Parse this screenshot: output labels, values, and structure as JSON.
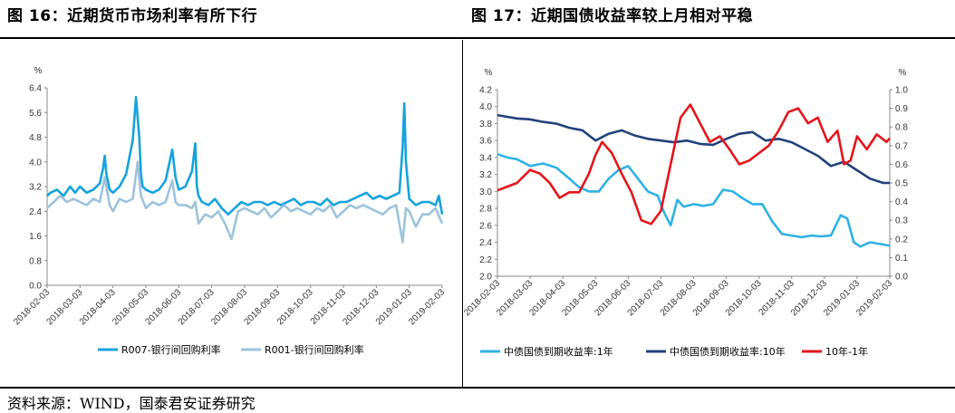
{
  "page": {
    "title_left": "图 16：近期货币市场利率有所下行",
    "title_right": "图 17：近期国债收益率较上月相对平稳",
    "source": "资料来源：WIND，国泰君安证券研究",
    "colors": {
      "r007": "#15a3dc",
      "r001": "#9ec3dd",
      "cgb1y": "#2fb2e3",
      "cgb10y": "#22417a",
      "spread": "#e3151b"
    }
  },
  "chart_data": [
    {
      "type": "line",
      "unit_label": "%",
      "ylim": [
        0.0,
        6.4
      ],
      "yticks": [
        "0.0",
        "0.8",
        "1.6",
        "2.4",
        "3.2",
        "4.0",
        "4.8",
        "5.6",
        "6.4"
      ],
      "xticks": [
        "2018-02-03",
        "2018-03-03",
        "2018-04-03",
        "2018-05-03",
        "2018-06-03",
        "2018-07-03",
        "2018-08-03",
        "2018-09-03",
        "2018-10-03",
        "2018-11-03",
        "2018-12-03",
        "2019-01-03",
        "2019-02-03"
      ],
      "grid": false,
      "legend": "bottom",
      "series": [
        {
          "name": "R007-银行间回购利率",
          "color": "#15a3dc",
          "x": [
            0,
            0.1,
            0.3,
            0.5,
            0.7,
            0.85,
            1.0,
            1.2,
            1.4,
            1.6,
            1.7,
            1.75,
            1.8,
            1.9,
            2.0,
            2.2,
            2.4,
            2.6,
            2.7,
            2.8,
            2.85,
            2.9,
            3.0,
            3.2,
            3.4,
            3.6,
            3.8,
            3.9,
            4.0,
            4.2,
            4.4,
            4.5,
            4.55,
            4.6,
            4.7,
            4.9,
            5.1,
            5.3,
            5.5,
            5.7,
            5.9,
            6.1,
            6.3,
            6.5,
            6.7,
            6.9,
            7.1,
            7.3,
            7.5,
            7.7,
            7.9,
            8.1,
            8.3,
            8.5,
            8.7,
            8.9,
            9.1,
            9.3,
            9.5,
            9.7,
            9.9,
            10.1,
            10.3,
            10.5,
            10.7,
            10.8,
            10.85,
            10.9,
            11.0,
            11.2,
            11.4,
            11.6,
            11.8,
            11.9,
            12.0
          ],
          "y": [
            2.9,
            3.0,
            3.1,
            2.9,
            3.2,
            3.0,
            3.2,
            3.0,
            3.1,
            3.3,
            3.8,
            4.2,
            3.6,
            3.1,
            3.0,
            3.2,
            3.6,
            4.7,
            6.1,
            4.8,
            3.6,
            3.2,
            3.1,
            3.0,
            3.1,
            3.4,
            4.4,
            3.5,
            3.1,
            3.2,
            3.7,
            4.6,
            3.2,
            2.9,
            2.7,
            2.6,
            2.8,
            2.5,
            2.3,
            2.5,
            2.7,
            2.6,
            2.7,
            2.7,
            2.6,
            2.7,
            2.6,
            2.7,
            2.8,
            2.6,
            2.7,
            2.7,
            2.6,
            2.8,
            2.6,
            2.7,
            2.7,
            2.8,
            2.9,
            3.0,
            2.8,
            2.9,
            2.8,
            2.9,
            3.0,
            4.5,
            5.9,
            4.0,
            2.8,
            2.6,
            2.7,
            2.7,
            2.6,
            2.9,
            2.3
          ]
        },
        {
          "name": "R001-银行间回购利率",
          "color": "#9ec3dd",
          "x": [
            0,
            0.2,
            0.4,
            0.6,
            0.8,
            1.0,
            1.2,
            1.4,
            1.6,
            1.75,
            1.9,
            2.0,
            2.2,
            2.4,
            2.6,
            2.75,
            2.85,
            3.0,
            3.2,
            3.4,
            3.6,
            3.8,
            3.9,
            4.0,
            4.2,
            4.4,
            4.5,
            4.6,
            4.8,
            5.0,
            5.2,
            5.4,
            5.6,
            5.8,
            6.0,
            6.2,
            6.4,
            6.6,
            6.8,
            7.0,
            7.2,
            7.4,
            7.6,
            7.8,
            8.0,
            8.2,
            8.4,
            8.6,
            8.8,
            9.0,
            9.2,
            9.4,
            9.6,
            9.8,
            10.0,
            10.2,
            10.4,
            10.6,
            10.8,
            10.9,
            11.0,
            11.2,
            11.4,
            11.6,
            11.8,
            12.0
          ],
          "y": [
            2.5,
            2.7,
            2.9,
            2.7,
            2.8,
            2.7,
            2.6,
            2.8,
            2.7,
            3.5,
            2.6,
            2.4,
            2.8,
            2.7,
            2.8,
            4.0,
            2.9,
            2.5,
            2.7,
            2.6,
            2.7,
            3.4,
            2.7,
            2.6,
            2.6,
            2.5,
            2.7,
            2.0,
            2.3,
            2.2,
            2.4,
            2.0,
            1.5,
            2.4,
            2.5,
            2.4,
            2.3,
            2.5,
            2.2,
            2.4,
            2.6,
            2.4,
            2.5,
            2.4,
            2.3,
            2.5,
            2.4,
            2.6,
            2.2,
            2.4,
            2.6,
            2.5,
            2.6,
            2.5,
            2.4,
            2.3,
            2.5,
            2.6,
            1.4,
            2.5,
            2.4,
            1.9,
            2.3,
            2.3,
            2.5,
            2.0
          ]
        }
      ]
    },
    {
      "type": "line",
      "unit_label_left": "%",
      "unit_label_right": "%",
      "ylim": [
        2.0,
        4.2
      ],
      "yticks": [
        "2.0",
        "2.2",
        "2.4",
        "2.6",
        "2.8",
        "3.0",
        "3.2",
        "3.4",
        "3.6",
        "3.8",
        "4.0",
        "4.2"
      ],
      "y2lim": [
        0.0,
        1.0
      ],
      "y2ticks": [
        "0.0",
        "0.1",
        "0.2",
        "0.3",
        "0.4",
        "0.5",
        "0.6",
        "0.7",
        "0.8",
        "0.9",
        "1.0"
      ],
      "xticks": [
        "2018-02-03",
        "2018-03-03",
        "2018-04-03",
        "2018-05-03",
        "2018-06-03",
        "2018-07-03",
        "2018-08-03",
        "2018-09-03",
        "2018-10-03",
        "2018-11-03",
        "2018-12-03",
        "2019-01-03",
        "2019-02-03"
      ],
      "grid": false,
      "legend": "bottom",
      "series": [
        {
          "name": "中债国债到期收益率:1年",
          "color": "#2fb2e3",
          "axis": "left",
          "x": [
            0,
            0.3,
            0.6,
            1.0,
            1.4,
            1.8,
            2.2,
            2.5,
            2.8,
            3.1,
            3.4,
            3.7,
            4.0,
            4.3,
            4.6,
            4.9,
            5.1,
            5.3,
            5.5,
            5.7,
            6.0,
            6.3,
            6.6,
            6.9,
            7.2,
            7.5,
            7.8,
            8.1,
            8.4,
            8.7,
            9.0,
            9.3,
            9.6,
            9.9,
            10.2,
            10.5,
            10.7,
            10.9,
            11.1,
            11.4,
            11.7,
            12.0
          ],
          "y": [
            3.44,
            3.4,
            3.38,
            3.3,
            3.33,
            3.28,
            3.15,
            3.05,
            3.0,
            3.0,
            3.15,
            3.25,
            3.3,
            3.15,
            3.0,
            2.95,
            2.75,
            2.6,
            2.9,
            2.82,
            2.85,
            2.83,
            2.85,
            3.02,
            3.0,
            2.92,
            2.85,
            2.85,
            2.65,
            2.5,
            2.48,
            2.46,
            2.48,
            2.47,
            2.48,
            2.72,
            2.68,
            2.4,
            2.35,
            2.4,
            2.38,
            2.36
          ]
        },
        {
          "name": "中债国债到期收益率:10年",
          "color": "#22417a",
          "axis": "left",
          "x": [
            0,
            0.3,
            0.6,
            1.0,
            1.4,
            1.8,
            2.2,
            2.6,
            3.0,
            3.4,
            3.8,
            4.2,
            4.6,
            5.0,
            5.4,
            5.8,
            6.2,
            6.6,
            7.0,
            7.4,
            7.8,
            8.2,
            8.6,
            9.0,
            9.4,
            9.8,
            10.2,
            10.6,
            11.0,
            11.4,
            11.8,
            12.0
          ],
          "y": [
            3.9,
            3.88,
            3.86,
            3.85,
            3.82,
            3.8,
            3.75,
            3.72,
            3.6,
            3.68,
            3.72,
            3.66,
            3.62,
            3.6,
            3.58,
            3.6,
            3.56,
            3.55,
            3.62,
            3.68,
            3.7,
            3.6,
            3.62,
            3.58,
            3.5,
            3.42,
            3.3,
            3.35,
            3.25,
            3.15,
            3.1,
            3.1
          ]
        },
        {
          "name": "10年-1年",
          "color": "#e3151b",
          "axis": "right",
          "x": [
            0,
            0.3,
            0.6,
            1.0,
            1.3,
            1.6,
            1.9,
            2.2,
            2.5,
            2.8,
            3.0,
            3.2,
            3.5,
            3.8,
            4.1,
            4.4,
            4.7,
            5.0,
            5.3,
            5.6,
            5.9,
            6.2,
            6.5,
            6.8,
            7.1,
            7.4,
            7.7,
            8.0,
            8.3,
            8.6,
            8.9,
            9.2,
            9.5,
            9.8,
            10.1,
            10.4,
            10.6,
            10.8,
            11.0,
            11.3,
            11.6,
            11.9,
            12.0
          ],
          "y": [
            0.46,
            0.48,
            0.5,
            0.57,
            0.55,
            0.5,
            0.42,
            0.45,
            0.45,
            0.55,
            0.65,
            0.72,
            0.66,
            0.55,
            0.45,
            0.3,
            0.28,
            0.35,
            0.6,
            0.85,
            0.92,
            0.82,
            0.72,
            0.75,
            0.68,
            0.6,
            0.62,
            0.66,
            0.7,
            0.78,
            0.88,
            0.9,
            0.82,
            0.85,
            0.72,
            0.78,
            0.6,
            0.62,
            0.75,
            0.68,
            0.76,
            0.72,
            0.74
          ]
        }
      ]
    }
  ]
}
